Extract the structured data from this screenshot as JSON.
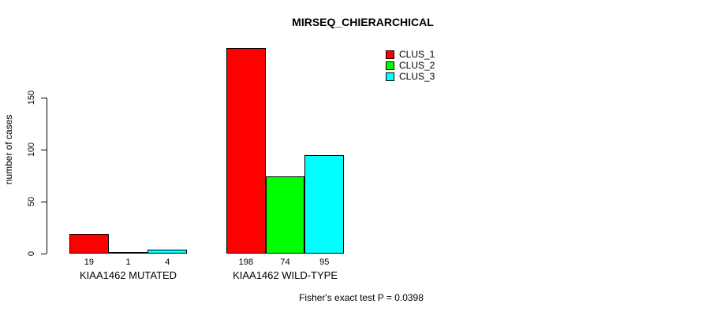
{
  "chart_data": {
    "type": "bar",
    "title": "MIRSEQ_CHIERARCHICAL",
    "ylabel": "number of cases",
    "xlabel": "",
    "categories": [
      "KIAA1462 MUTATED",
      "KIAA1462 WILD-TYPE"
    ],
    "series": [
      {
        "name": "CLUS_1",
        "color": "#ff0000",
        "values": [
          19,
          198
        ]
      },
      {
        "name": "CLUS_2",
        "color": "#00ff00",
        "values": [
          1,
          74
        ]
      },
      {
        "name": "CLUS_3",
        "color": "#00ffff",
        "values": [
          4,
          95
        ]
      }
    ],
    "yticks": [
      0,
      50,
      100,
      150
    ],
    "ylim": [
      0,
      205
    ],
    "grid": false,
    "legend_position": "top-right",
    "bar_border_color": "#000000",
    "background_color": "#ffffff",
    "annotation": "Fisher's exact test P = 0.0398"
  }
}
